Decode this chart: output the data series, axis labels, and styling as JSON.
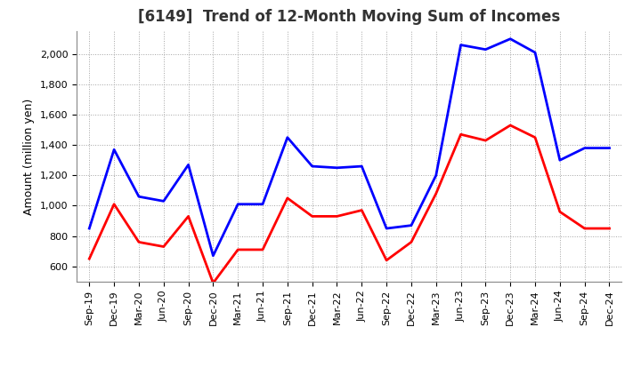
{
  "title": "[6149]  Trend of 12-Month Moving Sum of Incomes",
  "ylabel": "Amount (million yen)",
  "x_labels": [
    "Sep-19",
    "Dec-19",
    "Mar-20",
    "Jun-20",
    "Sep-20",
    "Dec-20",
    "Mar-21",
    "Jun-21",
    "Sep-21",
    "Dec-21",
    "Mar-22",
    "Jun-22",
    "Sep-22",
    "Dec-22",
    "Mar-23",
    "Jun-23",
    "Sep-23",
    "Dec-23",
    "Mar-24",
    "Jun-24",
    "Sep-24",
    "Dec-24"
  ],
  "ordinary_income": [
    850,
    1370,
    1060,
    1030,
    1270,
    670,
    1010,
    1010,
    1450,
    1260,
    1250,
    1260,
    850,
    870,
    1200,
    2060,
    2030,
    2100,
    2010,
    1300,
    1380,
    1380
  ],
  "net_income": [
    650,
    1010,
    760,
    730,
    930,
    490,
    710,
    710,
    1050,
    930,
    930,
    970,
    640,
    760,
    1080,
    1470,
    1430,
    1530,
    1450,
    960,
    850,
    850
  ],
  "ordinary_color": "#0000ff",
  "net_color": "#ff0000",
  "ylim_min": 500,
  "ylim_max": 2150,
  "yticks": [
    600,
    800,
    1000,
    1200,
    1400,
    1600,
    1800,
    2000
  ],
  "background_color": "#ffffff",
  "grid_color": "#999999",
  "title_fontsize": 12,
  "title_color": "#333333",
  "axis_label_fontsize": 9,
  "tick_fontsize": 8,
  "legend_fontsize": 9,
  "line_width": 2.0
}
